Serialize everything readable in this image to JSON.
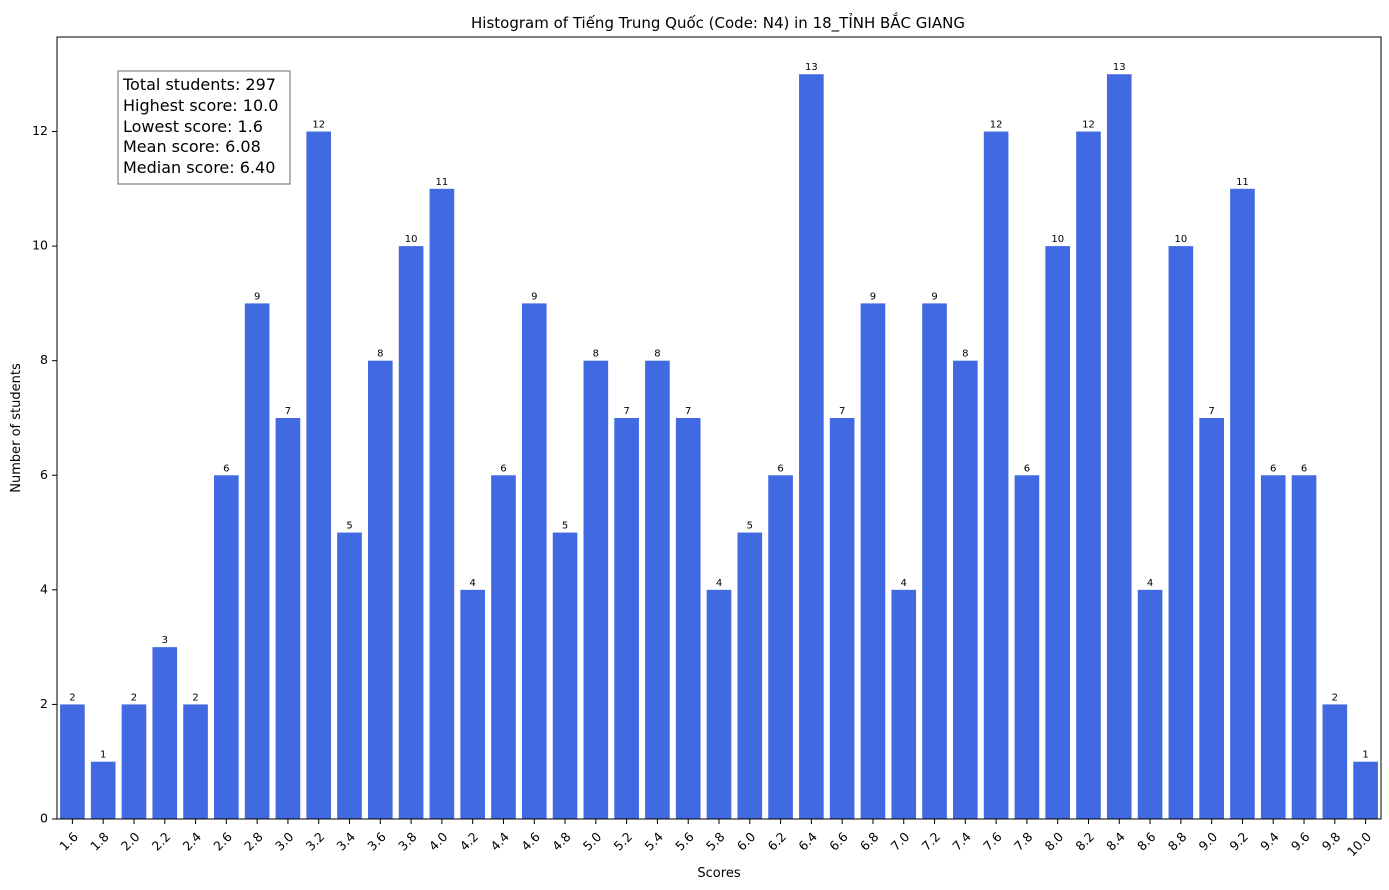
{
  "chart_data": {
    "type": "bar",
    "title": "Histogram of Tiếng Trung Quốc (Code: N4) in 18_TỈNH BẮC GIANG",
    "xlabel": "Scores",
    "ylabel": "Number of students",
    "ylim": [
      0,
      13.65
    ],
    "yticks": [
      0,
      2,
      4,
      6,
      8,
      10,
      12
    ],
    "grid": false,
    "bar_color": "#4169e1",
    "categories": [
      "1.6",
      "1.8",
      "2.0",
      "2.2",
      "2.4",
      "2.6",
      "2.8",
      "3.0",
      "3.2",
      "3.4",
      "3.6",
      "3.8",
      "4.0",
      "4.2",
      "4.4",
      "4.6",
      "4.8",
      "5.0",
      "5.2",
      "5.4",
      "5.6",
      "5.8",
      "6.0",
      "6.2",
      "6.4",
      "6.6",
      "6.8",
      "7.0",
      "7.2",
      "7.4",
      "7.6",
      "7.8",
      "8.0",
      "8.2",
      "8.4",
      "8.6",
      "8.8",
      "9.0",
      "9.2",
      "9.4",
      "9.6",
      "9.8",
      "10.0"
    ],
    "values": [
      2,
      1,
      2,
      3,
      2,
      6,
      9,
      7,
      12,
      5,
      8,
      10,
      11,
      4,
      6,
      9,
      5,
      8,
      7,
      8,
      7,
      4,
      5,
      6,
      13,
      7,
      9,
      4,
      9,
      8,
      12,
      6,
      10,
      12,
      13,
      4,
      10,
      7,
      11,
      6,
      6,
      2,
      1
    ],
    "annotation_lines": [
      "Total students: 297",
      "Highest score: 10.0",
      "Lowest score: 1.6",
      "Mean score: 6.08",
      "Median score: 6.40"
    ]
  }
}
